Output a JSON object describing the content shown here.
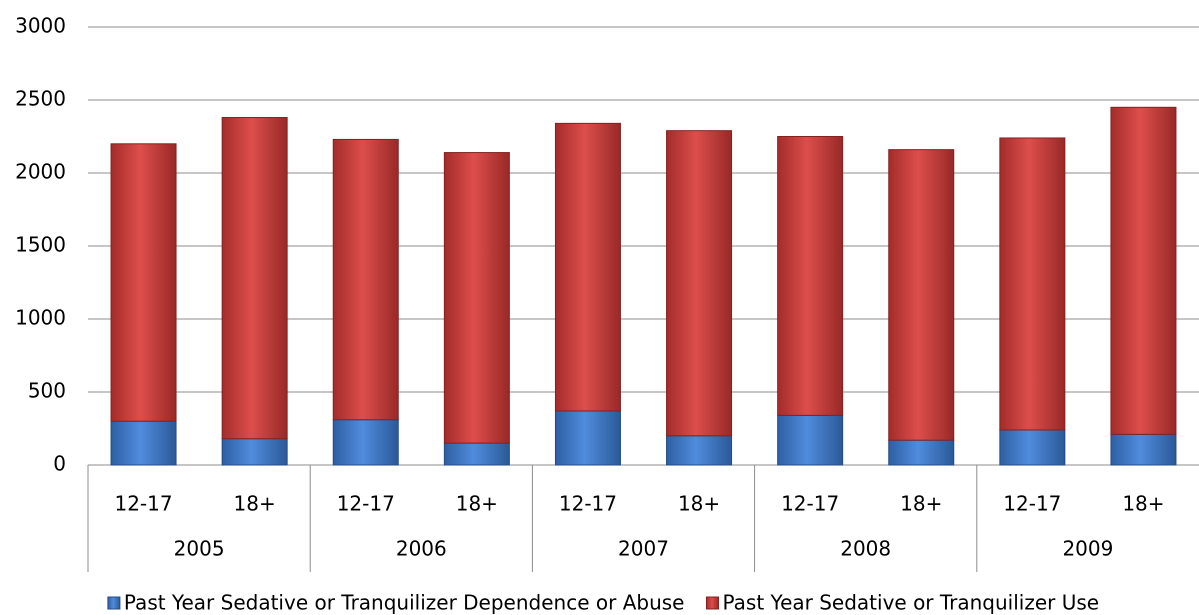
{
  "chart_data": {
    "type": "stacked_bar",
    "categories": [
      "12-17",
      "18+",
      "12-17",
      "18+",
      "12-17",
      "18+",
      "12-17",
      "18+",
      "12-17",
      "18+"
    ],
    "group_labels": [
      "2005",
      "2006",
      "2007",
      "2008",
      "2009"
    ],
    "series": [
      {
        "name": "Past Year Sedative or Tranquilizer Dependence or Abuse",
        "color": "#3d7fd9",
        "values": [
          300,
          180,
          310,
          150,
          370,
          200,
          340,
          170,
          240,
          210
        ]
      },
      {
        "name": "Past Year Sedative or Tranquilizer Use",
        "color": "#d93a38",
        "values": [
          1900,
          2200,
          1920,
          1990,
          1970,
          2090,
          1910,
          1990,
          2000,
          2240
        ]
      }
    ],
    "ylim": [
      0,
      3000
    ],
    "yticks": [
      0,
      500,
      1000,
      1500,
      2000,
      2500,
      3000
    ],
    "grid": true,
    "legend": "bottom"
  }
}
